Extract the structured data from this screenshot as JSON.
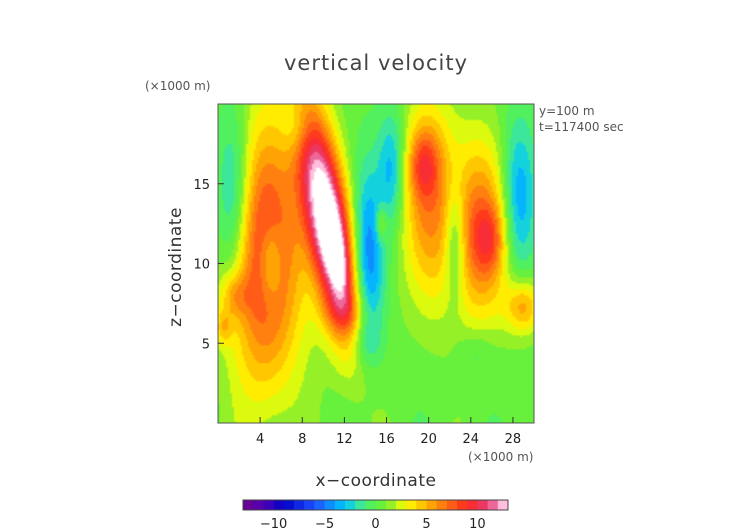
{
  "chart_data": {
    "type": "heatmap",
    "title": "vertical velocity",
    "xlabel": "x−coordinate",
    "ylabel": "z−coordinate",
    "x_unit": "(×1000 m)",
    "y_unit": "(×1000 m)",
    "xlim": [
      0,
      30
    ],
    "ylim": [
      0,
      20
    ],
    "x_ticks": [
      4,
      8,
      12,
      16,
      20,
      24,
      28
    ],
    "y_ticks": [
      5,
      10,
      15
    ],
    "annotations": [
      "y=100 m",
      "t=117400 sec"
    ],
    "colorbar": {
      "range": [
        -13,
        13
      ],
      "ticks": [
        -10,
        -5,
        0,
        5,
        10
      ],
      "tick_labels": [
        "−10",
        "−5",
        "0",
        "5",
        "10"
      ]
    },
    "grid": false,
    "features": [
      {
        "x": 4.5,
        "z": 10.5,
        "w": 9,
        "sx": 2.5,
        "sz": 6.0,
        "cross": 0
      },
      {
        "x": 5.0,
        "z": 10.0,
        "w": -4,
        "sx": 0.8,
        "sz": 1.8,
        "cross": 0
      },
      {
        "x": 1.5,
        "z": 14.0,
        "w": -5,
        "sx": 1.2,
        "sz": 4.0,
        "cross": 0
      },
      {
        "x": 7.5,
        "z": 18.5,
        "w": -2,
        "sx": 1.0,
        "sz": 1.2,
        "cross": 0
      },
      {
        "x": 10.5,
        "z": 12.5,
        "w": 15,
        "sx": 1.5,
        "sz": 5.0,
        "cross": -0.25
      },
      {
        "x": 11.0,
        "z": 11.0,
        "w": 5,
        "sx": 0.6,
        "sz": 1.8,
        "cross": -0.25
      },
      {
        "x": 14.2,
        "z": 10.0,
        "w": -6,
        "sx": 1.1,
        "sz": 4.0,
        "cross": 0
      },
      {
        "x": 16.5,
        "z": 16.0,
        "w": -4,
        "sx": 0.9,
        "sz": 2.5,
        "cross": 0
      },
      {
        "x": 15.5,
        "z": 12.5,
        "w": 3,
        "sx": 0.4,
        "sz": 0.8,
        "cross": 0
      },
      {
        "x": 20.0,
        "z": 14.0,
        "w": 6,
        "sx": 1.8,
        "sz": 4.5,
        "cross": 0
      },
      {
        "x": 19.5,
        "z": 16.3,
        "w": 4,
        "sx": 1.0,
        "sz": 1.5,
        "cross": 0
      },
      {
        "x": 25.0,
        "z": 12.0,
        "w": 7,
        "sx": 2.0,
        "sz": 4.0,
        "cross": 0
      },
      {
        "x": 25.8,
        "z": 11.5,
        "w": 3,
        "sx": 1.0,
        "sz": 1.5,
        "cross": 0
      },
      {
        "x": 22.5,
        "z": 11.5,
        "w": -4,
        "sx": 0.7,
        "sz": 2.5,
        "cross": 0
      },
      {
        "x": 28.5,
        "z": 14.0,
        "w": -5,
        "sx": 1.2,
        "sz": 3.5,
        "cross": 0
      },
      {
        "x": 29.0,
        "z": 7.3,
        "w": 5,
        "sx": 1.2,
        "sz": 1.2,
        "cross": 0
      },
      {
        "x": 1.5,
        "z": 8.0,
        "w": 3,
        "sx": 1.0,
        "sz": 1.0,
        "cross": 0
      },
      {
        "x": 0.5,
        "z": 6.0,
        "w": 3,
        "sx": 0.6,
        "sz": 0.8,
        "cross": 0
      },
      {
        "x": 12.0,
        "z": 7.0,
        "w": 2,
        "sx": 1.5,
        "sz": 1.0,
        "cross": 0
      },
      {
        "x": 14.0,
        "z": 5.0,
        "w": -1.5,
        "sx": 1.0,
        "sz": 1.0,
        "cross": 0
      },
      {
        "x": 24.5,
        "z": 4.5,
        "w": -1.5,
        "sx": 1.2,
        "sz": 1.0,
        "cross": 0
      }
    ]
  }
}
